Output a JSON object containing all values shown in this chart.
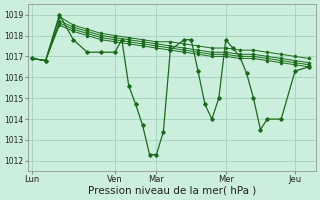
{
  "bg_color": "#cceedd",
  "grid_color": "#99ccbb",
  "line_color": "#1a6b1a",
  "marker_color": "#1a6b1a",
  "xlabel": "Pression niveau de la mer( hPa )",
  "xlabel_fontsize": 7.5,
  "ylim": [
    1011.5,
    1019.5
  ],
  "yticks": [
    1012,
    1013,
    1014,
    1015,
    1016,
    1017,
    1018,
    1019
  ],
  "xtick_labels": [
    "Lun",
    "Ven",
    "Mar",
    "Mer",
    "Jeu"
  ],
  "xtick_positions": [
    0,
    6,
    9,
    14,
    19
  ],
  "n_points": 21,
  "smooth_series": [
    [
      1016.9,
      1016.8,
      1018.9,
      1018.5,
      1018.3,
      1018.1,
      1018.0,
      1017.9,
      1017.8,
      1017.7,
      1017.7,
      1017.6,
      1017.5,
      1017.4,
      1017.4,
      1017.3,
      1017.3,
      1017.2,
      1017.1,
      1017.0,
      1016.9
    ],
    [
      1016.9,
      1016.8,
      1018.7,
      1018.4,
      1018.2,
      1018.0,
      1017.9,
      1017.8,
      1017.7,
      1017.6,
      1017.5,
      1017.4,
      1017.3,
      1017.2,
      1017.2,
      1017.1,
      1017.1,
      1017.0,
      1016.9,
      1016.8,
      1016.7
    ],
    [
      1016.9,
      1016.8,
      1018.6,
      1018.3,
      1018.1,
      1017.9,
      1017.8,
      1017.7,
      1017.6,
      1017.5,
      1017.4,
      1017.3,
      1017.2,
      1017.1,
      1017.1,
      1017.0,
      1017.0,
      1016.9,
      1016.8,
      1016.7,
      1016.6
    ],
    [
      1016.9,
      1016.8,
      1018.5,
      1018.2,
      1018.0,
      1017.8,
      1017.7,
      1017.6,
      1017.5,
      1017.4,
      1017.3,
      1017.2,
      1017.1,
      1017.0,
      1017.0,
      1016.9,
      1016.9,
      1016.8,
      1016.7,
      1016.6,
      1016.5
    ]
  ],
  "main_x": [
    0,
    1,
    2,
    3,
    4,
    5,
    6,
    6.5,
    7,
    7.5,
    8,
    8.5,
    9,
    9.5,
    10,
    11,
    11.5,
    12,
    12.5,
    13,
    13.5,
    14,
    14.5,
    15,
    15.5,
    16,
    16.5,
    17,
    18,
    19,
    20
  ],
  "main_y": [
    1016.9,
    1016.8,
    1019.0,
    1017.8,
    1017.2,
    1017.2,
    1017.2,
    1017.8,
    1015.6,
    1014.7,
    1013.7,
    1012.3,
    1012.3,
    1013.4,
    1017.3,
    1017.8,
    1017.8,
    1016.3,
    1014.7,
    1014.0,
    1015.0,
    1017.8,
    1017.4,
    1017.0,
    1016.2,
    1015.0,
    1013.5,
    1014.0,
    1014.0,
    1016.3,
    1016.5
  ]
}
